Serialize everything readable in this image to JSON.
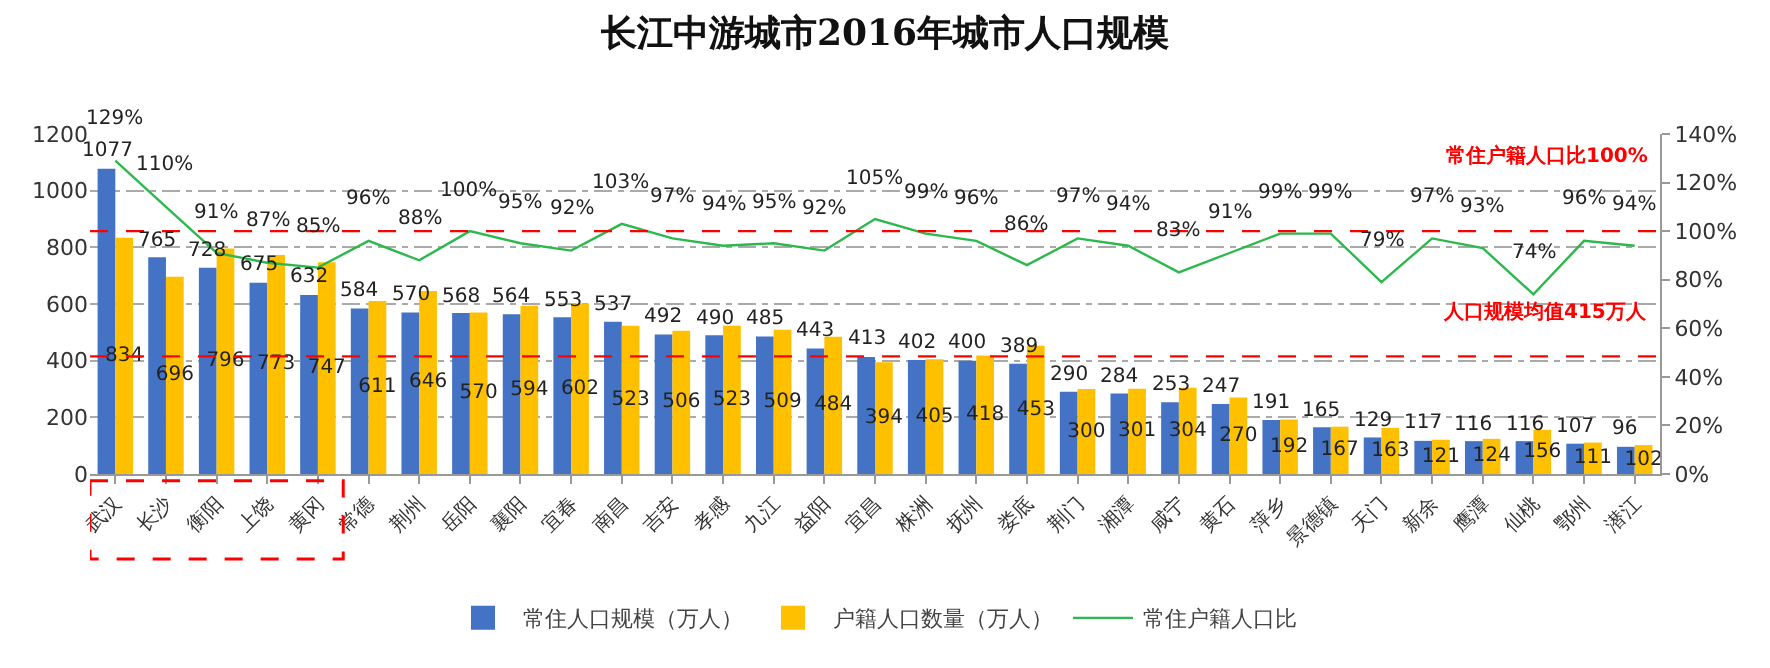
{
  "chart_data": {
    "type": "bar",
    "title": "长江中游城市2016年城市人口规模",
    "categories": [
      "武汉",
      "长沙",
      "衡阳",
      "上饶",
      "黄冈",
      "常德",
      "荆州",
      "岳阳",
      "襄阳",
      "宜春",
      "南昌",
      "吉安",
      "孝感",
      "九江",
      "益阳",
      "宜昌",
      "株洲",
      "抚州",
      "娄底",
      "荆门",
      "湘潭",
      "咸宁",
      "黄石",
      "萍乡",
      "景德镇",
      "天门",
      "新余",
      "鹰潭",
      "仙桃",
      "鄂州",
      "潜江"
    ],
    "series": [
      {
        "name": "常住人口规模（万人）",
        "color": "#4472c4",
        "values": [
          1077,
          765,
          728,
          675,
          632,
          584,
          570,
          568,
          564,
          553,
          537,
          492,
          490,
          485,
          443,
          413,
          402,
          400,
          389,
          290,
          284,
          253,
          247,
          191,
          165,
          129,
          117,
          116,
          116,
          107,
          96
        ]
      },
      {
        "name": "户籍人口数量（万人）",
        "color": "#ffc000",
        "values": [
          834,
          696,
          796,
          773,
          747,
          611,
          646,
          570,
          594,
          602,
          523,
          506,
          523,
          509,
          484,
          394,
          405,
          418,
          453,
          300,
          301,
          304,
          270,
          192,
          167,
          163,
          121,
          124,
          156,
          111,
          102
        ]
      },
      {
        "name": "常住户籍人口比",
        "type": "line",
        "axis": "y2",
        "color": "#2db84d",
        "values": [
          129,
          110,
          91,
          87,
          85,
          96,
          88,
          100,
          95,
          92,
          103,
          97,
          94,
          95,
          92,
          105,
          99,
          96,
          86,
          97,
          94,
          83,
          91,
          99,
          99,
          79,
          97,
          93,
          74,
          96,
          94
        ],
        "value_labels": [
          "129%",
          "110%",
          "91%",
          "87%",
          "85%",
          "96%",
          "88%",
          "100%",
          "95%",
          "92%",
          "103%",
          "97%",
          "94%",
          "95%",
          "92%",
          "105%",
          "99%",
          "96%",
          "86%",
          "97%",
          "94%",
          "83%",
          "91%",
          "99%",
          "99%",
          "79%",
          "97%",
          "93%",
          "74%",
          "96%",
          "94%"
        ]
      }
    ],
    "ylim": [
      0,
      1200
    ],
    "yticks": [
      0,
      200,
      400,
      600,
      800,
      1000,
      1200
    ],
    "y2lim": [
      0,
      140
    ],
    "y2ticks": [
      {
        "value": 0,
        "label": "0%"
      },
      {
        "value": 20,
        "label": "20%"
      },
      {
        "value": 40,
        "label": "40%"
      },
      {
        "value": 60,
        "label": "60%"
      },
      {
        "value": 80,
        "label": "80%"
      },
      {
        "value": 100,
        "label": "100%"
      },
      {
        "value": 120,
        "label": "120%"
      },
      {
        "value": 140,
        "label": "140%"
      }
    ],
    "ref_lines": [
      {
        "axis": "y",
        "value": 415,
        "label": "人口规模均值415万人",
        "color": "#ff0000",
        "line_style": "dashed"
      },
      {
        "axis": "y2",
        "value": 100,
        "label": "常住户籍人口比100%",
        "color": "#ff0000",
        "line_style": "dashed"
      }
    ],
    "data_labels": true,
    "grid": "y",
    "legend": "bottom"
  }
}
